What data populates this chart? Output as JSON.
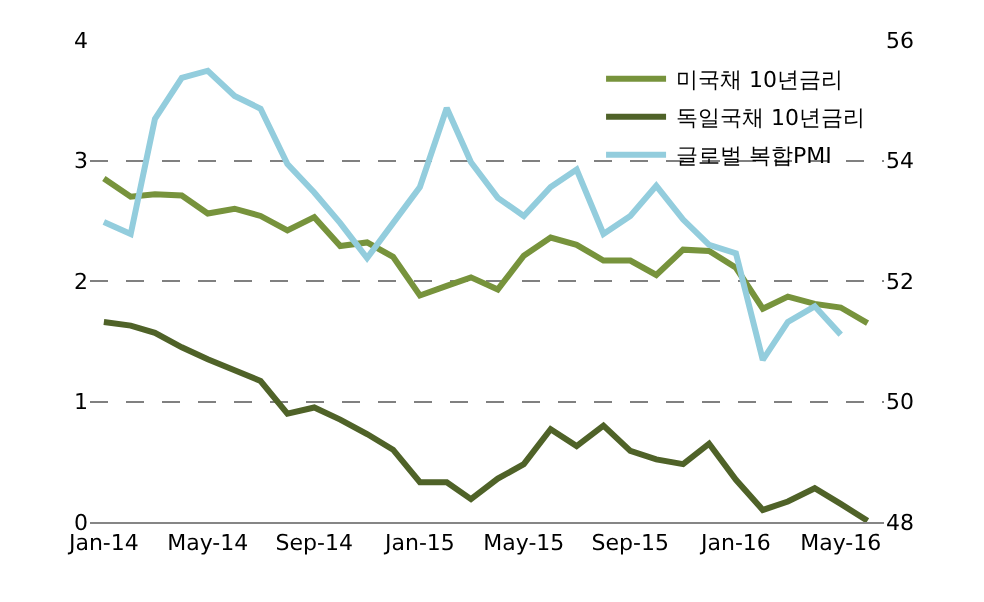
{
  "chart_data": {
    "type": "line",
    "x": [
      "2014-01",
      "2014-02",
      "2014-03",
      "2014-04",
      "2014-05",
      "2014-06",
      "2014-07",
      "2014-08",
      "2014-09",
      "2014-10",
      "2014-11",
      "2014-12",
      "2015-01",
      "2015-02",
      "2015-03",
      "2015-04",
      "2015-05",
      "2015-06",
      "2015-07",
      "2015-08",
      "2015-09",
      "2015-10",
      "2015-11",
      "2015-12",
      "2016-01",
      "2016-02",
      "2016-03",
      "2016-04",
      "2016-05",
      "2016-06"
    ],
    "series": [
      {
        "name": "미국채 10년금리",
        "color": "#77933c",
        "values": [
          2.85,
          2.7,
          2.72,
          2.71,
          2.56,
          2.6,
          2.54,
          2.42,
          2.53,
          2.29,
          2.32,
          2.2,
          1.88,
          1.96,
          2.03,
          1.93,
          2.21,
          2.36,
          2.3,
          2.17,
          2.17,
          2.05,
          2.26,
          2.25,
          2.11,
          1.77,
          1.87,
          1.81,
          1.78,
          1.65
        ]
      },
      {
        "name": "독일국채 10년금리",
        "color": "#4f6228",
        "values": [
          1.66,
          1.63,
          1.57,
          1.45,
          1.35,
          1.26,
          1.17,
          0.9,
          0.95,
          0.85,
          0.73,
          0.6,
          0.33,
          0.33,
          0.19,
          0.36,
          0.48,
          0.77,
          0.63,
          0.8,
          0.59,
          0.52,
          0.48,
          0.65,
          0.35,
          0.1,
          0.17,
          0.28,
          0.15,
          0.01
        ]
      },
      {
        "name": "글로벌 복합PMI",
        "color": "#93cddd",
        "axis": "y2",
        "values": [
          52.98,
          52.78,
          54.69,
          55.37,
          55.49,
          55.07,
          54.86,
          53.94,
          53.47,
          52.96,
          52.38,
          52.96,
          53.56,
          54.87,
          53.97,
          53.38,
          53.08,
          53.56,
          53.85,
          52.78,
          53.08,
          53.58,
          53.02,
          52.6,
          52.46,
          50.69,
          51.32,
          51.58,
          51.11,
          null
        ]
      }
    ],
    "xlim": [
      "2013-12-16",
      "2016-06-20"
    ],
    "xticks": [
      {
        "value": "2014-01",
        "label": "Jan-14"
      },
      {
        "value": "2014-05",
        "label": "May-14"
      },
      {
        "value": "2014-09",
        "label": "Sep-14"
      },
      {
        "value": "2015-01",
        "label": "Jan-15"
      },
      {
        "value": "2015-05",
        "label": "May-15"
      },
      {
        "value": "2015-09",
        "label": "Sep-15"
      },
      {
        "value": "2016-01",
        "label": "Jan-16"
      },
      {
        "value": "2016-05",
        "label": "May-16"
      }
    ],
    "ylim": [
      0,
      4
    ],
    "yticks": [
      0,
      1,
      2,
      3,
      4
    ],
    "y2lim": [
      48,
      56
    ],
    "y2ticks": [
      48,
      50,
      52,
      54,
      56
    ],
    "grid": "y",
    "legend": "top right",
    "marker": "none",
    "line_style": "solid"
  }
}
